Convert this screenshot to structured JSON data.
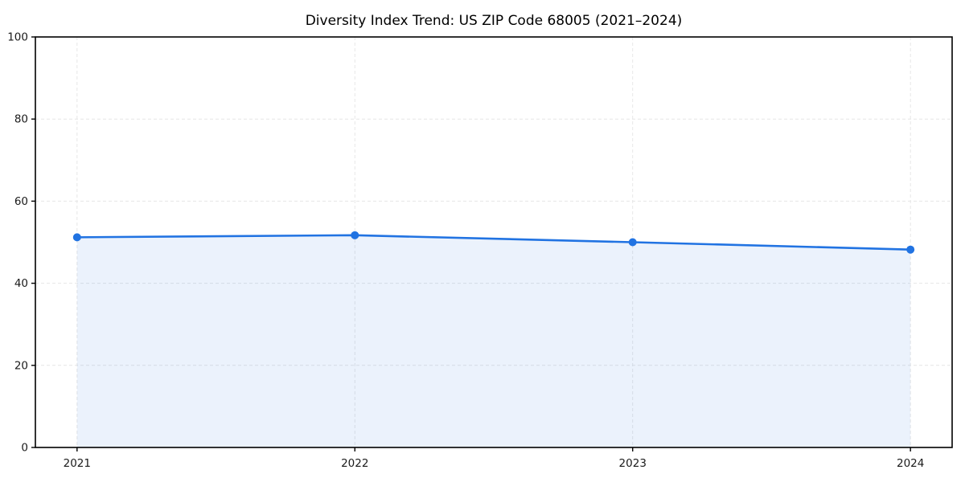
{
  "chart_data": {
    "type": "area",
    "title": "Diversity Index Trend: US ZIP Code 68005 (2021–2024)",
    "x": [
      2021,
      2022,
      2023,
      2024
    ],
    "values": [
      51.2,
      51.7,
      50.0,
      48.2
    ],
    "xticklabels": [
      "2021",
      "2022",
      "2023",
      "2024"
    ],
    "yticks": [
      0,
      20,
      40,
      60,
      80,
      100
    ],
    "ylim": [
      0,
      100
    ],
    "x_margin_frac": 0.05,
    "xlabel": "",
    "ylabel": "",
    "grid": "dashed",
    "legend": "none",
    "colors": {
      "line": "#2173e2",
      "marker": "#2173e2",
      "fill": "#2173e2",
      "fill_opacity": 0.09,
      "grid": "#e6e6e6",
      "spine": "#000000",
      "tick_text": "#1a1a1a",
      "background": "#ffffff"
    }
  }
}
